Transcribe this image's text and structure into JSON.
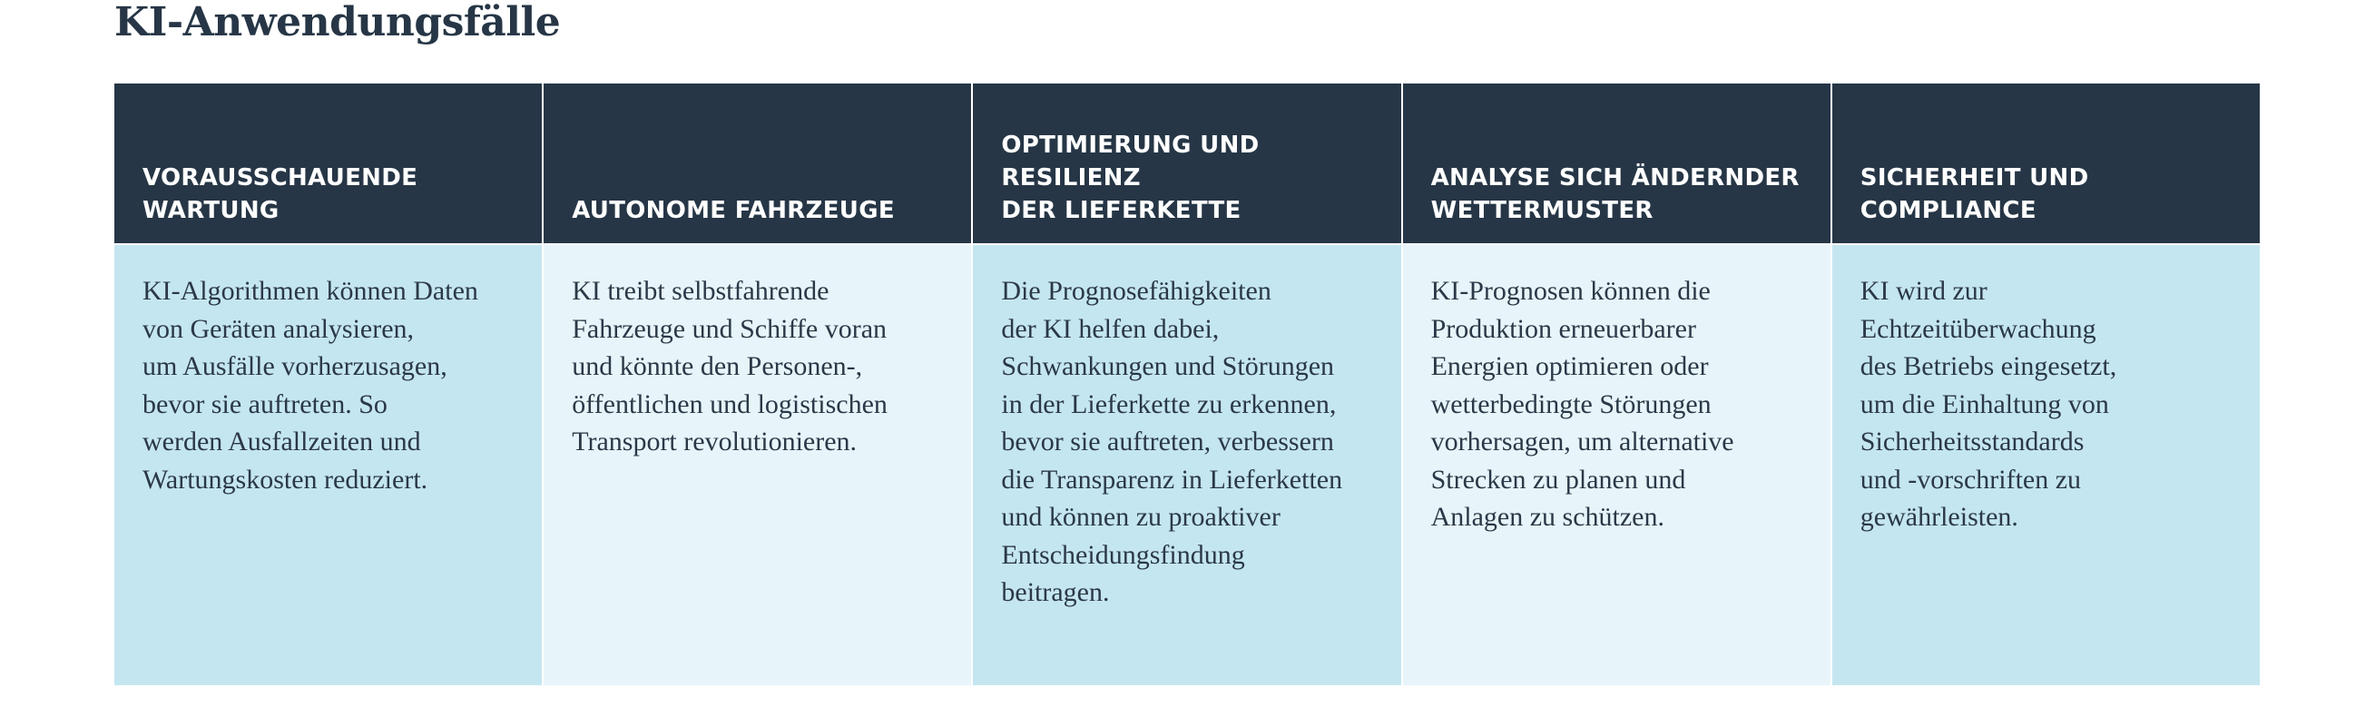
{
  "title": "KI-Anwendungsfälle",
  "columns": [
    {
      "heading_lines": [
        "VORAUSSCHAUENDE",
        "WARTUNG"
      ],
      "text_lines": [
        "KI-Algorithmen können Daten",
        "von Geräten analysieren,",
        "um Ausfälle vorherzusagen,",
        "bevor sie auftreten. So",
        "werden Ausfallzeiten und",
        "Wartungskosten reduziert."
      ]
    },
    {
      "heading_lines": [
        "AUTONOME FAHRZEUGE"
      ],
      "text_lines": [
        "KI treibt selbstfahrende",
        "Fahrzeuge und Schiffe voran",
        "und könnte den Personen-,",
        "öffentlichen und logistischen",
        "Transport revolutionieren."
      ]
    },
    {
      "heading_lines": [
        "OPTIMIERUNG UND RESILIENZ",
        "DER LIEFERKETTE"
      ],
      "text_lines": [
        "Die Prognosefähigkeiten",
        "der KI helfen dabei,",
        "Schwankungen und Störungen",
        "in der Lieferkette zu erkennen,",
        "bevor sie auftreten, verbessern",
        "die Transparenz in Lieferketten",
        "und können zu proaktiver",
        "Entscheidungsfindung",
        "beitragen."
      ]
    },
    {
      "heading_lines": [
        "ANALYSE SICH ÄNDERNDER",
        "WETTERMUSTER"
      ],
      "text_lines": [
        "KI-Prognosen können die",
        "Produktion erneuerbarer",
        "Energien optimieren oder",
        "wetterbedingte Störungen",
        "vorhersagen, um alternative",
        "Strecken zu planen und",
        "Anlagen zu schützen."
      ]
    },
    {
      "heading_lines": [
        "SICHERHEIT UND COMPLIANCE"
      ],
      "text_lines": [
        "KI wird zur",
        "Echtzeitüberwachung",
        "des Betriebs eingesetzt,",
        "um die Einhaltung von",
        "Sicherheitsstandards",
        "und -vorschriften zu",
        "gewährleisten."
      ]
    }
  ]
}
